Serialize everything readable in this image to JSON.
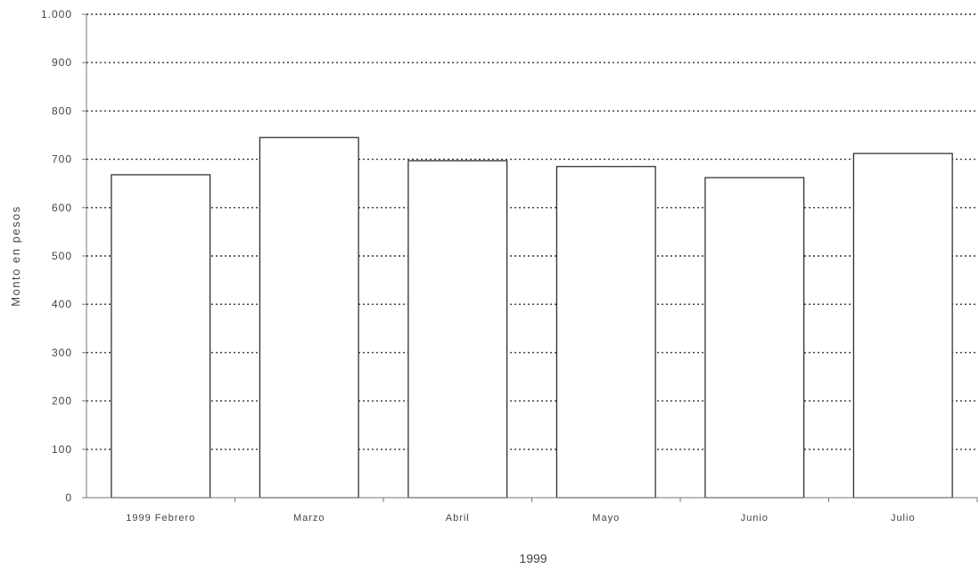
{
  "chart_data": {
    "type": "bar",
    "categories": [
      "1999 Febrero",
      "Marzo",
      "Abril",
      "Mayo",
      "Junio",
      "Julio"
    ],
    "values": [
      668,
      745,
      697,
      685,
      662,
      712
    ],
    "xlabel": "1999",
    "ylabel": "Monto en pesos",
    "ylim": [
      0,
      1000
    ],
    "yticks": [
      0,
      100,
      200,
      300,
      400,
      500,
      600,
      700,
      800,
      900,
      1000
    ],
    "ytick_labels": [
      "0",
      "100",
      "200",
      "300",
      "400",
      "500",
      "600",
      "700",
      "800",
      "900",
      "1.000"
    ],
    "grid": "horizontal dotted",
    "bar_fill": "#ffffff",
    "bar_stroke": "#222222"
  }
}
